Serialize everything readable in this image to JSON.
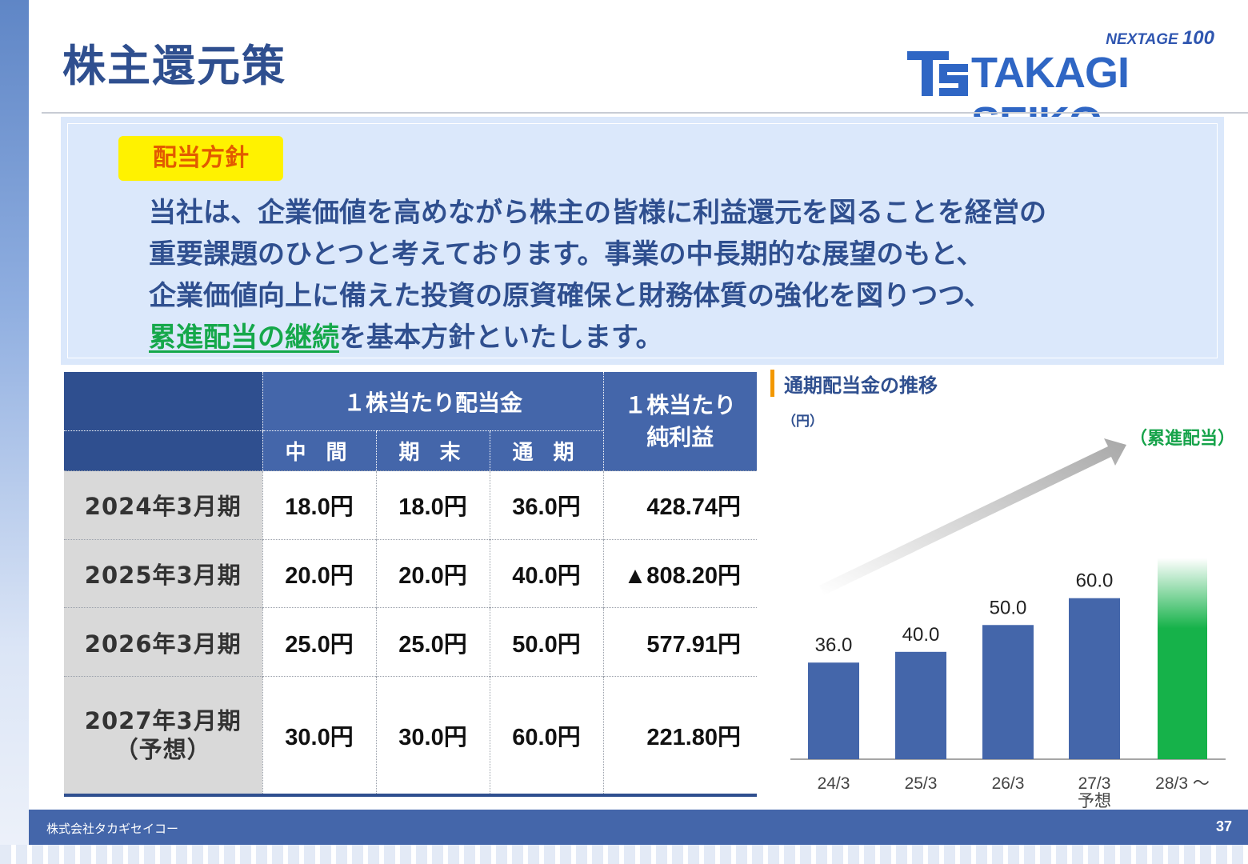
{
  "header": {
    "title": "株主還元策",
    "logo_tagline_prefix": "NEXTAGE ",
    "logo_tagline_number": "100",
    "logo_name": "TAKAGI SEIKO"
  },
  "policy": {
    "badge": "配当方針",
    "lines": [
      "当社は、企業価値を高めながら株主の皆様に利益還元を図ることを経営の",
      "重要課題のひとつと考えております。事業の中長期的な展望のもと、",
      "企業価値向上に備えた投資の原資確保と財務体質の強化を図りつつ、"
    ],
    "highlight": "累進配当の継続",
    "line4_rest": "を基本方針といたします。"
  },
  "table": {
    "dps_header": "１株当たり配当金",
    "eps_header": "１株当たり\n純利益",
    "sub_headers": [
      "中 間",
      "期 末",
      "通 期"
    ],
    "rows": [
      {
        "period": "2024年3月期",
        "interim": "18.0円",
        "yearend": "18.0円",
        "annual": "36.0円",
        "eps": "428.74円"
      },
      {
        "period": "2025年3月期",
        "interim": "20.0円",
        "yearend": "20.0円",
        "annual": "40.0円",
        "eps": "▲808.20円"
      },
      {
        "period": "2026年3月期",
        "interim": "25.0円",
        "yearend": "25.0円",
        "annual": "50.0円",
        "eps": "577.91円"
      },
      {
        "period": "2027年3月期\n（予想）",
        "interim": "30.0円",
        "yearend": "30.0円",
        "annual": "60.0円",
        "eps": "221.80円"
      }
    ]
  },
  "chart_data": {
    "type": "bar",
    "title": "通期配当金の推移",
    "unit": "（円）",
    "categories": [
      "24/3",
      "25/3",
      "26/3",
      "27/3\n予想",
      "28/3 ～"
    ],
    "values": [
      36.0,
      40.0,
      50.0,
      60.0,
      null
    ],
    "value_labels": [
      "36.0",
      "40.0",
      "50.0",
      "60.0",
      ""
    ],
    "annotation": "（累進配当）",
    "colors": {
      "bar": "#4466aa",
      "future": "#16b24a",
      "arrow": "#a8a8a8"
    }
  },
  "footer": {
    "company": "株式会社タカギセイコー",
    "page": "37"
  }
}
